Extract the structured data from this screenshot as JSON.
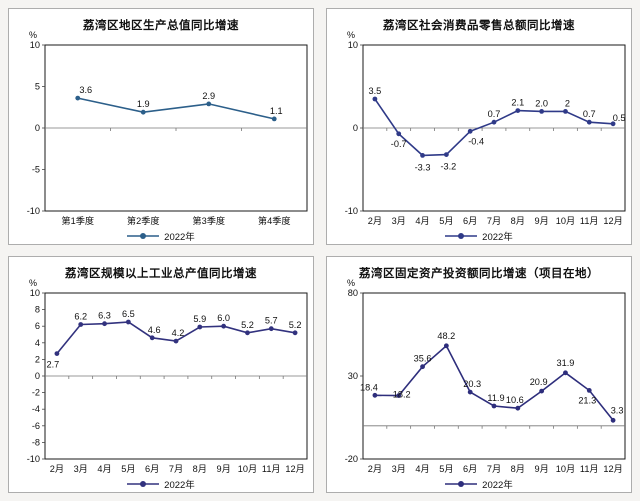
{
  "page": {
    "background": "#f5f4f2",
    "panel_border": "#adadad",
    "plot_border": "#1a1a1a",
    "axis_line": "#777777",
    "text_color": "#111111"
  },
  "chart_data": [
    {
      "type": "line",
      "id": "gdp",
      "title": "荔湾区地区生产总值同比增速",
      "unit": "%",
      "legend": "2022年",
      "legend_position": "bottom",
      "line_color": "#2c5f8a",
      "categories": [
        "第1季度",
        "第2季度",
        "第3季度",
        "第4季度"
      ],
      "values": [
        3.6,
        1.9,
        2.9,
        1.1
      ],
      "labels": [
        "3.6",
        "1.9",
        "2.9",
        "1.1"
      ],
      "label_pos": [
        "above",
        "above",
        "above",
        "above"
      ],
      "label_dx": [
        8,
        0,
        0,
        2
      ],
      "label_dy": [
        0,
        0,
        0,
        0
      ],
      "ylim": [
        -10,
        10
      ],
      "yticks": [
        10,
        5,
        0,
        -5,
        -10
      ],
      "grid": "zero-line-only"
    },
    {
      "type": "line",
      "id": "retail",
      "title": "荔湾区社会消费品零售总额同比增速",
      "unit": "%",
      "legend": "2022年",
      "legend_position": "bottom",
      "line_color": "#2f3a88",
      "categories": [
        "2月",
        "3月",
        "4月",
        "5月",
        "6月",
        "7月",
        "8月",
        "9月",
        "10月",
        "11月",
        "12月"
      ],
      "values": [
        3.5,
        -0.7,
        -3.3,
        -3.2,
        -0.4,
        0.7,
        2.1,
        2.0,
        2,
        0.7,
        0.5
      ],
      "labels": [
        "3.5",
        "-0.7",
        "-3.3",
        "-3.2",
        "-0.4",
        "0.7",
        "2.1",
        "2.0",
        "2",
        "0.7",
        "0.5"
      ],
      "label_pos": [
        "above",
        "below",
        "below",
        "below",
        "below",
        "above",
        "above",
        "above",
        "above",
        "above",
        "above"
      ],
      "label_dx": [
        0,
        0,
        0,
        2,
        6,
        0,
        0,
        0,
        2,
        0,
        6
      ],
      "label_dy": [
        0,
        0,
        2,
        2,
        0,
        0,
        0,
        0,
        0,
        0,
        2
      ],
      "ylim": [
        -10,
        10
      ],
      "yticks": [
        10,
        0,
        -10
      ],
      "grid": "zero-line-only"
    },
    {
      "type": "line",
      "id": "industry",
      "title": "荔湾区规模以上工业总产值同比增速",
      "unit": "%",
      "legend": "2022年",
      "legend_position": "bottom",
      "line_color": "#32327e",
      "categories": [
        "2月",
        "3月",
        "4月",
        "5月",
        "6月",
        "7月",
        "8月",
        "9月",
        "10月",
        "11月",
        "12月"
      ],
      "values": [
        2.7,
        6.2,
        6.3,
        6.5,
        4.6,
        4.2,
        5.9,
        6.0,
        5.2,
        5.7,
        5.2
      ],
      "labels": [
        "2.7",
        "6.2",
        "6.3",
        "6.5",
        "4.6",
        "4.2",
        "5.9",
        "6.0",
        "5.2",
        "5.7",
        "5.2"
      ],
      "label_pos": [
        "below",
        "above",
        "above",
        "above",
        "above",
        "above",
        "above",
        "above",
        "above",
        "above",
        "above"
      ],
      "label_dx": [
        -4,
        0,
        0,
        0,
        2,
        2,
        0,
        0,
        0,
        0,
        0
      ],
      "label_dy": [
        1,
        0,
        0,
        0,
        0,
        0,
        0,
        0,
        0,
        0,
        0
      ],
      "ylim": [
        -10,
        10
      ],
      "yticks": [
        10,
        8,
        6,
        4,
        2,
        0,
        -2,
        -4,
        -6,
        -8,
        -10
      ],
      "grid": "zero-line-only"
    },
    {
      "type": "line",
      "id": "investment",
      "title": "荔湾区固定资产投资额同比增速（项目在地）",
      "unit": "%",
      "legend": "2022年",
      "legend_position": "bottom",
      "line_color": "#2e2e7c",
      "categories": [
        "2月",
        "3月",
        "4月",
        "5月",
        "6月",
        "7月",
        "8月",
        "9月",
        "10月",
        "11月",
        "12月"
      ],
      "values": [
        18.4,
        18.2,
        35.6,
        48.2,
        20.3,
        11.9,
        10.6,
        20.9,
        31.9,
        21.3,
        3.3
      ],
      "labels": [
        "18.4",
        "18.2",
        "35.6",
        "48.2",
        "20.3",
        "11.9",
        "10.6",
        "20.9",
        "31.9",
        "21.3",
        "3.3"
      ],
      "label_pos": [
        "above",
        "above",
        "above",
        "above",
        "above",
        "above",
        "above",
        "above",
        "above",
        "below",
        "above"
      ],
      "label_dx": [
        -6,
        3,
        0,
        0,
        2,
        2,
        -3,
        -3,
        0,
        -2,
        4
      ],
      "label_dy": [
        0,
        7,
        0,
        -2,
        0,
        0,
        0,
        -1,
        -2,
        0,
        -2
      ],
      "ylim": [
        -20,
        80
      ],
      "yticks": [
        80,
        30,
        -20
      ],
      "grid": "zero-line-only"
    }
  ]
}
